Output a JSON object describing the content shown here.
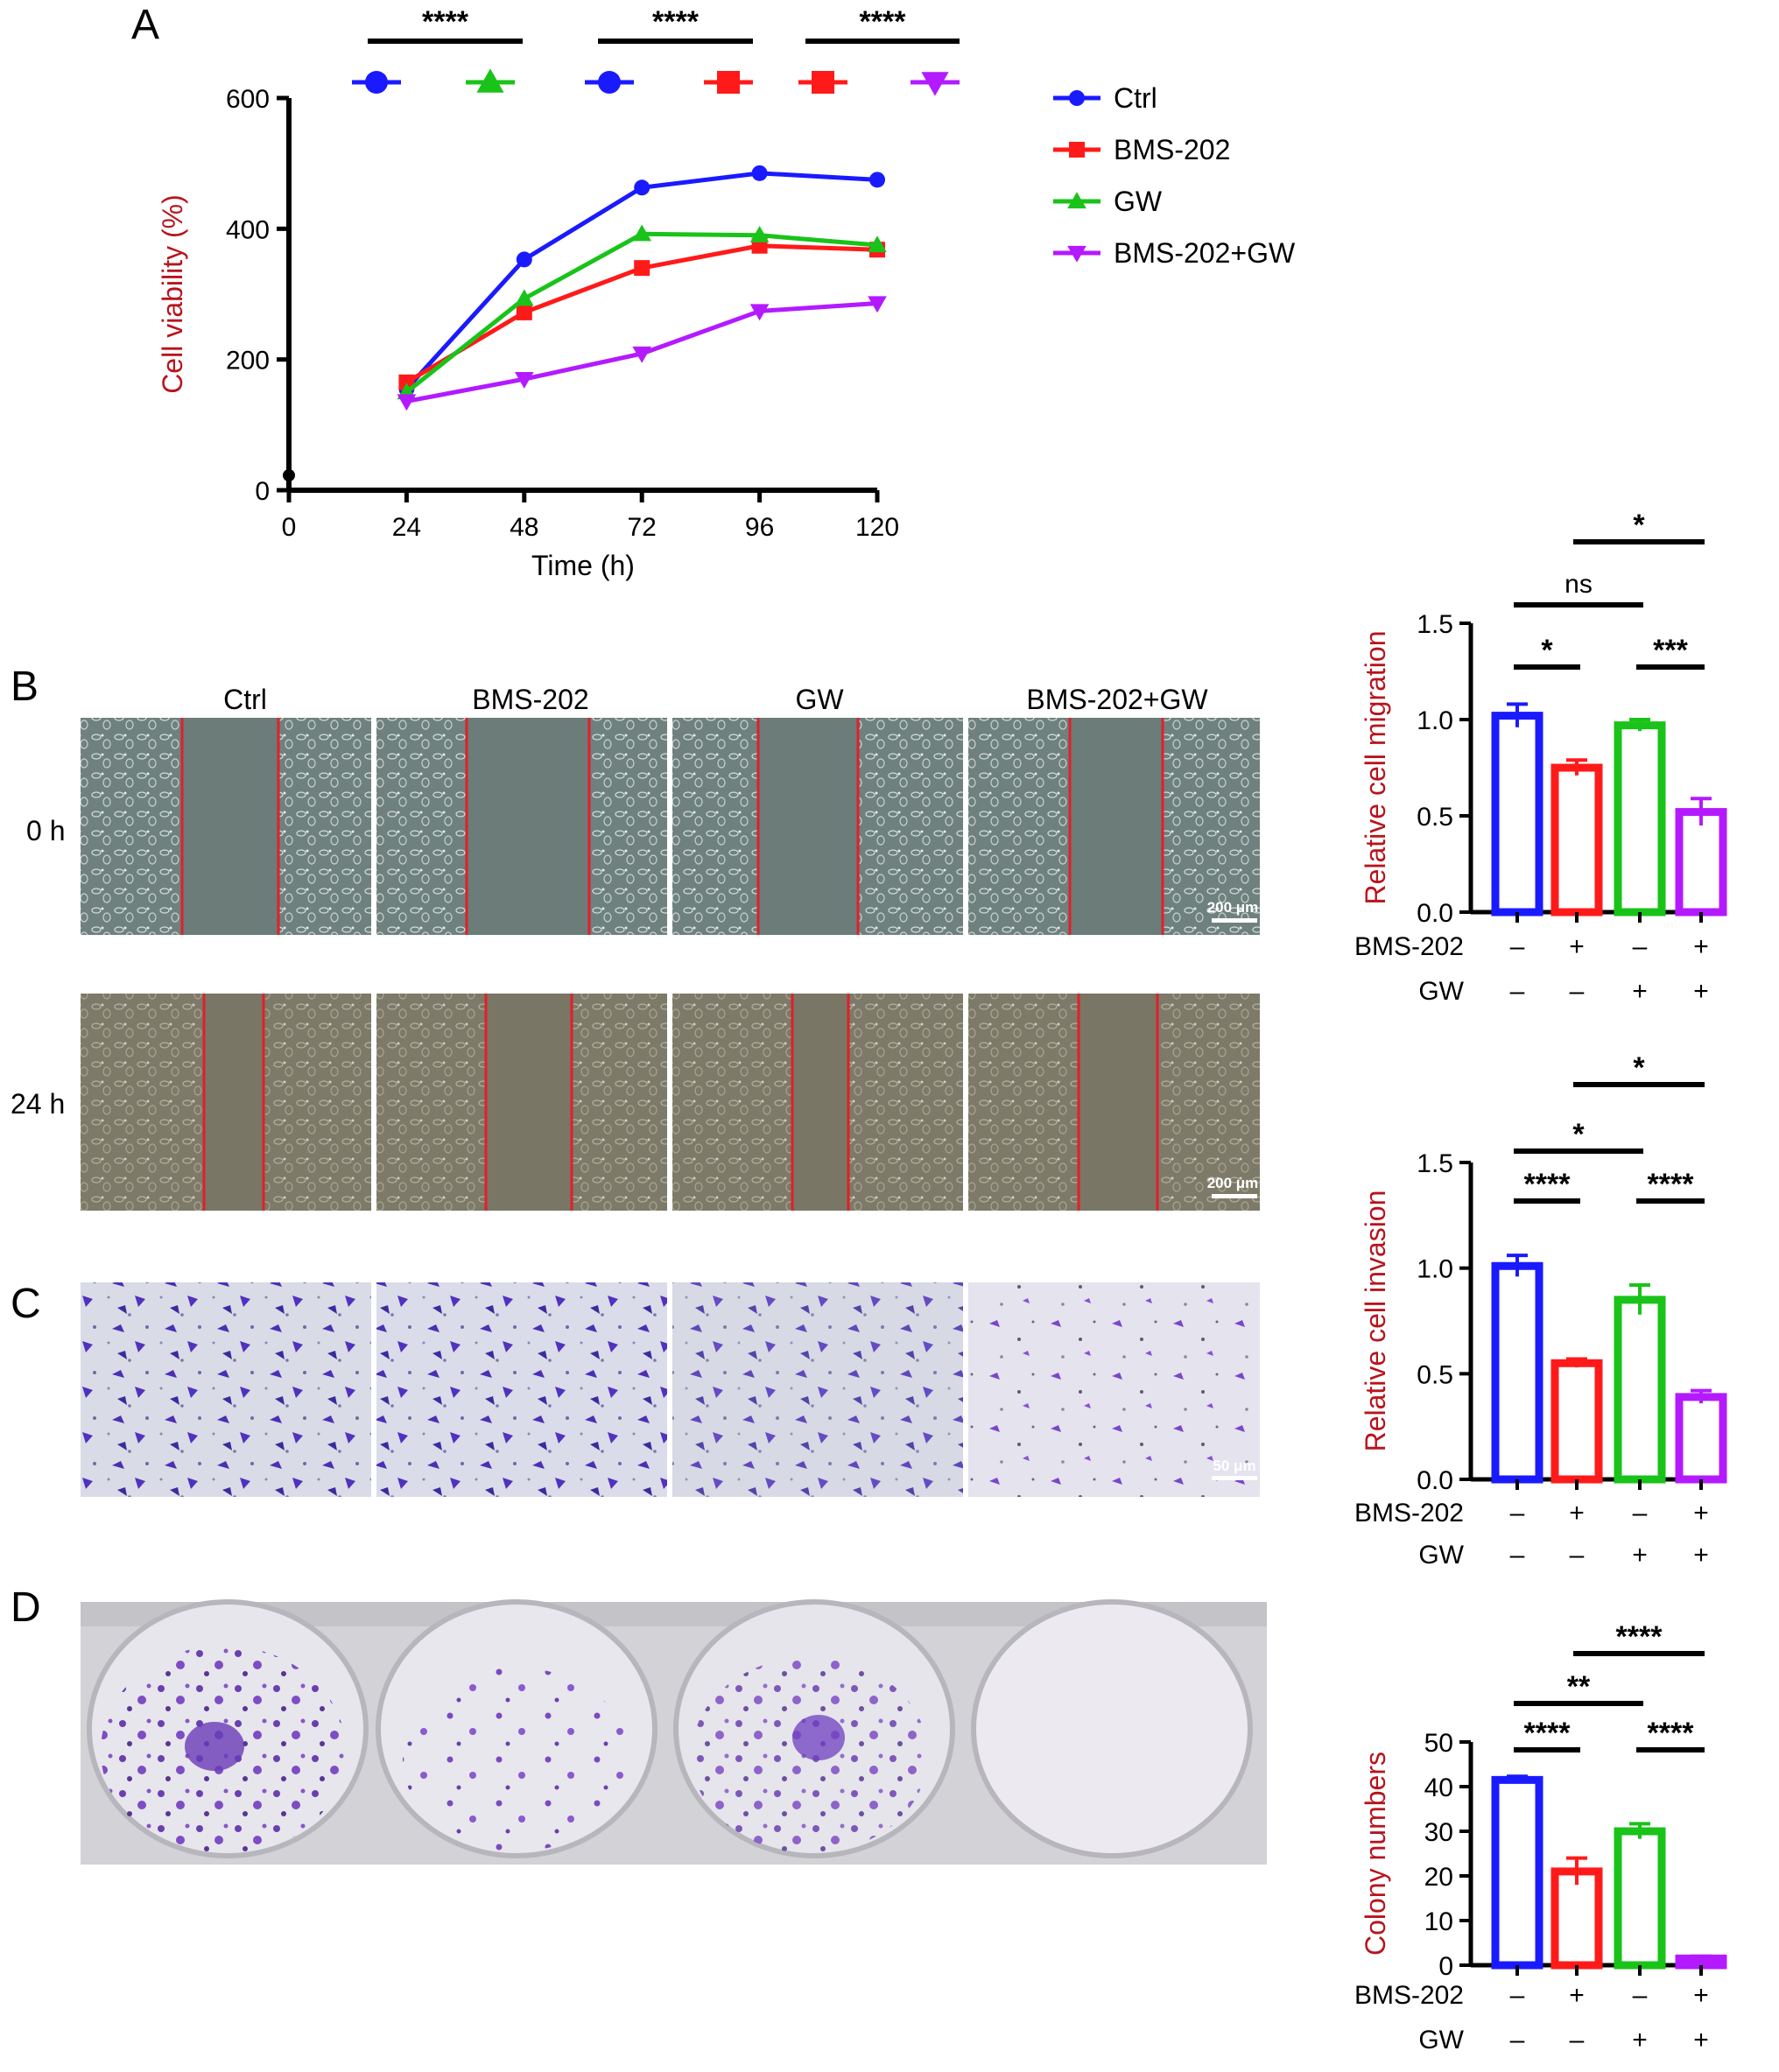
{
  "panels": {
    "a": {
      "letter": "A",
      "chart_data": {
        "type": "line",
        "xlabel": "Time (h)",
        "ylabel": "Cell viability (%)",
        "x": [
          24,
          48,
          72,
          96,
          120
        ],
        "x_ticks": [
          "0",
          "24",
          "48",
          "72",
          "96",
          "120"
        ],
        "y_ticks": [
          "0",
          "200",
          "400",
          "600"
        ],
        "xlim": [
          0,
          120
        ],
        "ylim": [
          0,
          600
        ],
        "legend_position": "right",
        "series": [
          {
            "name": "Ctrl",
            "color": "#1a1aff",
            "marker": "circle",
            "values": [
              155,
              353,
              463,
              485,
              475
            ]
          },
          {
            "name": "BMS-202",
            "color": "#ff1a1a",
            "marker": "square",
            "values": [
              165,
              272,
              340,
              374,
              368
            ]
          },
          {
            "name": "GW",
            "color": "#19c319",
            "marker": "triangle-up",
            "values": [
              150,
              293,
              392,
              390,
              375
            ]
          },
          {
            "name": "BMS-202+GW",
            "color": "#b31aff",
            "marker": "triangle-down",
            "values": [
              136,
              170,
              209,
              274,
              286
            ]
          }
        ],
        "comparisons": [
          {
            "label": "****",
            "pair": [
              "Ctrl",
              "GW"
            ]
          },
          {
            "label": "****",
            "pair": [
              "Ctrl",
              "BMS-202"
            ]
          },
          {
            "label": "****",
            "pair": [
              "BMS-202",
              "BMS-202+GW"
            ]
          }
        ]
      }
    },
    "b": {
      "letter": "B",
      "column_headers": [
        "Ctrl",
        "BMS-202",
        "GW",
        "BMS-202+GW"
      ],
      "row_labels": [
        "0 h",
        "24 h"
      ],
      "scale_bar": "200 μm"
    },
    "c": {
      "letter": "C",
      "scale_bar": "50 μm"
    },
    "d": {
      "letter": "D"
    },
    "bar_charts": [
      {
        "chart_data": {
          "type": "bar",
          "ylabel": "Relative cell migration",
          "categories": [
            "Ctrl",
            "BMS-202",
            "GW",
            "BMS-202+GW"
          ],
          "values": [
            1.02,
            0.75,
            0.97,
            0.52
          ],
          "errors": [
            0.06,
            0.04,
            0.03,
            0.07
          ],
          "ylim": [
            0,
            1.5
          ],
          "y_ticks": [
            "0.0",
            "0.5",
            "1.0",
            "1.5"
          ],
          "colors": [
            "#1a1aff",
            "#ff1a1a",
            "#19c319",
            "#b31aff"
          ],
          "comparisons": [
            {
              "label": "*",
              "pair": [
                "BMS-202",
                "BMS-202+GW"
              ]
            },
            {
              "label": "ns",
              "pair": [
                "Ctrl",
                "GW"
              ]
            },
            {
              "label": "*",
              "pair": [
                "Ctrl",
                "BMS-202"
              ]
            },
            {
              "label": "***",
              "pair": [
                "GW",
                "BMS-202+GW"
              ]
            }
          ],
          "conditions": [
            {
              "name": "BMS-202",
              "marks": [
                "–",
                "+",
                "–",
                "+"
              ]
            },
            {
              "name": "GW",
              "marks": [
                "–",
                "–",
                "+",
                "+"
              ]
            }
          ]
        }
      },
      {
        "chart_data": {
          "type": "bar",
          "ylabel": "Relative cell invasion",
          "categories": [
            "Ctrl",
            "BMS-202",
            "GW",
            "BMS-202+GW"
          ],
          "values": [
            1.01,
            0.55,
            0.85,
            0.39
          ],
          "errors": [
            0.05,
            0.02,
            0.07,
            0.03
          ],
          "ylim": [
            0,
            1.5
          ],
          "y_ticks": [
            "0.0",
            "0.5",
            "1.0",
            "1.5"
          ],
          "colors": [
            "#1a1aff",
            "#ff1a1a",
            "#19c319",
            "#b31aff"
          ],
          "comparisons": [
            {
              "label": "*",
              "pair": [
                "BMS-202",
                "BMS-202+GW"
              ]
            },
            {
              "label": "*",
              "pair": [
                "Ctrl",
                "GW"
              ]
            },
            {
              "label": "****",
              "pair": [
                "Ctrl",
                "BMS-202"
              ]
            },
            {
              "label": "****",
              "pair": [
                "GW",
                "BMS-202+GW"
              ]
            }
          ],
          "conditions": [
            {
              "name": "BMS-202",
              "marks": [
                "–",
                "+",
                "–",
                "+"
              ]
            },
            {
              "name": "GW",
              "marks": [
                "–",
                "–",
                "+",
                "+"
              ]
            }
          ]
        }
      },
      {
        "chart_data": {
          "type": "bar",
          "ylabel": "Colony numbers",
          "categories": [
            "Ctrl",
            "BMS-202",
            "GW",
            "BMS-202+GW"
          ],
          "values": [
            41.5,
            21,
            30,
            1.5
          ],
          "errors": [
            0.8,
            3,
            1.7,
            0.5
          ],
          "ylim": [
            0,
            50
          ],
          "y_ticks": [
            "0",
            "10",
            "20",
            "30",
            "40",
            "50"
          ],
          "colors": [
            "#1a1aff",
            "#ff1a1a",
            "#19c319",
            "#b31aff"
          ],
          "comparisons": [
            {
              "label": "****",
              "pair": [
                "BMS-202",
                "BMS-202+GW"
              ]
            },
            {
              "label": "**",
              "pair": [
                "Ctrl",
                "GW"
              ]
            },
            {
              "label": "****",
              "pair": [
                "Ctrl",
                "BMS-202"
              ]
            },
            {
              "label": "****",
              "pair": [
                "GW",
                "BMS-202+GW"
              ]
            }
          ],
          "conditions": [
            {
              "name": "BMS-202",
              "marks": [
                "–",
                "+",
                "–",
                "+"
              ]
            },
            {
              "name": "GW",
              "marks": [
                "–",
                "–",
                "+",
                "+"
              ]
            }
          ]
        }
      }
    ]
  }
}
